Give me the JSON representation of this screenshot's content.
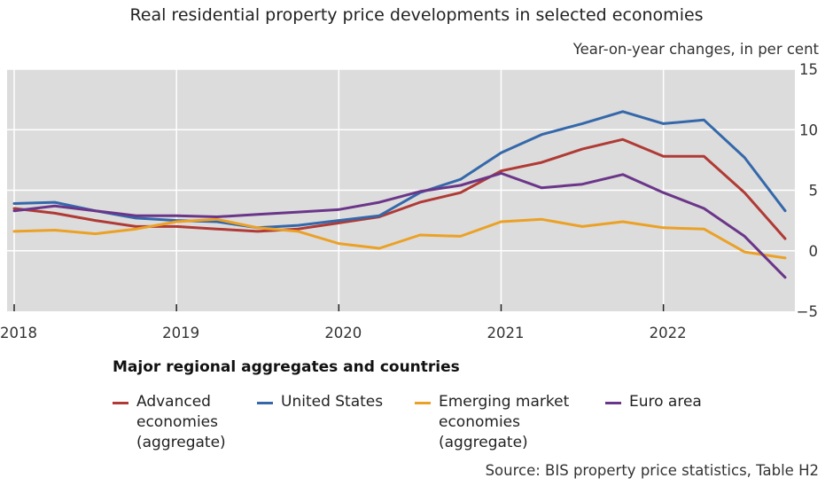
{
  "chart_data": {
    "type": "line",
    "title": "Real residential property price developments in selected economies",
    "units_label": "Year-on-year changes, in per cent",
    "legend_title": "Major regional aggregates and countries",
    "source": "Source: BIS property price statistics, Table H2",
    "x_tick_labels": [
      "2018",
      "2019",
      "2020",
      "2021",
      "2022"
    ],
    "y_tick_labels": [
      "15",
      "10",
      "5",
      "0",
      "−5"
    ],
    "x": [
      "2018Q1",
      "2018Q2",
      "2018Q3",
      "2018Q4",
      "2019Q1",
      "2019Q2",
      "2019Q3",
      "2019Q4",
      "2020Q1",
      "2020Q2",
      "2020Q3",
      "2020Q4",
      "2021Q1",
      "2021Q2",
      "2021Q3",
      "2021Q4",
      "2022Q1",
      "2022Q2",
      "2022Q3",
      "2022Q4"
    ],
    "xlim": [
      "2018Q1",
      "2022Q4"
    ],
    "ylim": [
      -5,
      15
    ],
    "grid": true,
    "legend_position": "bottom",
    "series": [
      {
        "name": "Advanced\neconomies\n(aggregate)",
        "color": "#b03a35",
        "values": [
          3.5,
          3.1,
          2.5,
          2.0,
          2.0,
          1.8,
          1.6,
          1.8,
          2.3,
          2.8,
          4.0,
          4.8,
          6.6,
          7.3,
          8.4,
          9.2,
          7.8,
          7.8,
          4.8,
          1.0
        ]
      },
      {
        "name": "United States",
        "color": "#3568aa",
        "values": [
          3.9,
          4.0,
          3.3,
          2.7,
          2.5,
          2.4,
          1.9,
          2.1,
          2.5,
          2.9,
          4.8,
          5.9,
          8.1,
          9.6,
          10.5,
          11.5,
          10.5,
          10.8,
          7.7,
          3.3
        ]
      },
      {
        "name": "Emerging market\neconomies\n(aggregate)",
        "color": "#eba126",
        "values": [
          1.6,
          1.7,
          1.4,
          1.8,
          2.4,
          2.6,
          1.9,
          1.6,
          0.6,
          0.2,
          1.3,
          1.2,
          2.4,
          2.6,
          2.0,
          2.4,
          1.9,
          1.8,
          -0.1,
          -0.6
        ]
      },
      {
        "name": "Euro area",
        "color": "#6b3689",
        "values": [
          3.3,
          3.7,
          3.3,
          2.9,
          2.9,
          2.8,
          3.0,
          3.2,
          3.4,
          4.0,
          4.9,
          5.4,
          6.4,
          5.2,
          5.5,
          6.3,
          4.8,
          3.5,
          1.2,
          -2.2
        ]
      }
    ]
  }
}
